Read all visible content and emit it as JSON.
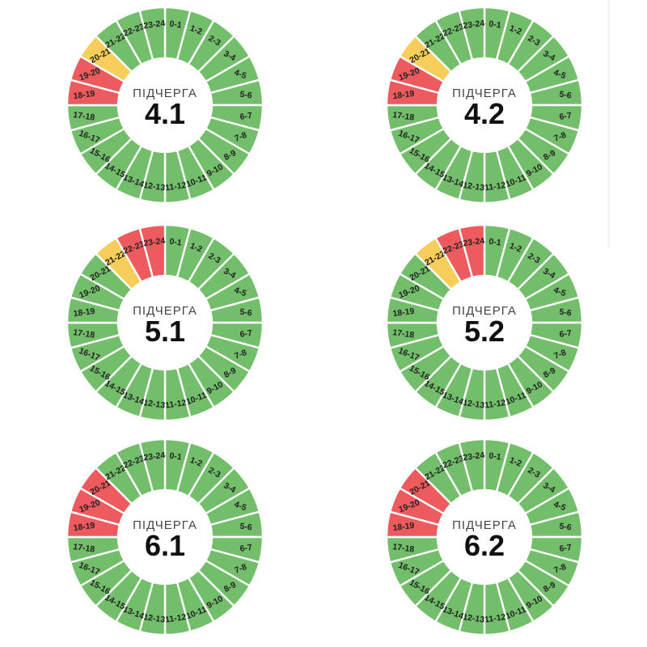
{
  "page": {
    "background": "#ffffff"
  },
  "colors": {
    "on": "#72BE6A",
    "warn": "#F7CE5C",
    "off": "#EE5B5E",
    "separator": "#ffffff",
    "hour_label_text": "#222222",
    "center_title_text": "#454545",
    "center_number_text": "#101010"
  },
  "chart_data": [
    {
      "type": "donut",
      "center": {
        "title": "ПІДЧЕРГА",
        "number": "4.1"
      },
      "categories": [
        "0-1",
        "1-2",
        "2-3",
        "3-4",
        "4-5",
        "5-6",
        "6-7",
        "7-8",
        "8-9",
        "9-10",
        "10-11",
        "11-12",
        "12-13",
        "13-14",
        "14-15",
        "15-16",
        "16-17",
        "17-18",
        "18-19",
        "19-20",
        "20-21",
        "21-22",
        "22-23",
        "23-24"
      ],
      "statuses": [
        "on",
        "on",
        "on",
        "on",
        "on",
        "on",
        "on",
        "on",
        "on",
        "on",
        "on",
        "on",
        "on",
        "on",
        "on",
        "on",
        "on",
        "on",
        "off",
        "off",
        "warn",
        "on",
        "on",
        "on"
      ]
    },
    {
      "type": "donut",
      "center": {
        "title": "ПІДЧЕРГА",
        "number": "4.2"
      },
      "categories": [
        "0-1",
        "1-2",
        "2-3",
        "3-4",
        "4-5",
        "5-6",
        "6-7",
        "7-8",
        "8-9",
        "9-10",
        "10-11",
        "11-12",
        "12-13",
        "13-14",
        "14-15",
        "15-16",
        "16-17",
        "17-18",
        "18-19",
        "19-20",
        "20-21",
        "21-22",
        "22-23",
        "23-24"
      ],
      "statuses": [
        "on",
        "on",
        "on",
        "on",
        "on",
        "on",
        "on",
        "on",
        "on",
        "on",
        "on",
        "on",
        "on",
        "on",
        "on",
        "on",
        "on",
        "on",
        "off",
        "off",
        "warn",
        "on",
        "on",
        "on"
      ]
    },
    {
      "type": "donut",
      "center": {
        "title": "ПІДЧЕРГА",
        "number": "5.1"
      },
      "categories": [
        "0-1",
        "1-2",
        "2-3",
        "3-4",
        "4-5",
        "5-6",
        "6-7",
        "7-8",
        "8-9",
        "9-10",
        "10-11",
        "11-12",
        "12-13",
        "13-14",
        "14-15",
        "15-16",
        "16-17",
        "17-18",
        "18-19",
        "19-20",
        "20-21",
        "21-22",
        "22-23",
        "23-24"
      ],
      "statuses": [
        "on",
        "on",
        "on",
        "on",
        "on",
        "on",
        "on",
        "on",
        "on",
        "on",
        "on",
        "on",
        "on",
        "on",
        "on",
        "on",
        "on",
        "on",
        "on",
        "on",
        "on",
        "warn",
        "off",
        "off"
      ]
    },
    {
      "type": "donut",
      "center": {
        "title": "ПІДЧЕРГА",
        "number": "5.2"
      },
      "categories": [
        "0-1",
        "1-2",
        "2-3",
        "3-4",
        "4-5",
        "5-6",
        "6-7",
        "7-8",
        "8-9",
        "9-10",
        "10-11",
        "11-12",
        "12-13",
        "13-14",
        "14-15",
        "15-16",
        "16-17",
        "17-18",
        "18-19",
        "19-20",
        "20-21",
        "21-22",
        "22-23",
        "23-24"
      ],
      "statuses": [
        "on",
        "on",
        "on",
        "on",
        "on",
        "on",
        "on",
        "on",
        "on",
        "on",
        "on",
        "on",
        "on",
        "on",
        "on",
        "on",
        "on",
        "on",
        "on",
        "on",
        "on",
        "warn",
        "off",
        "off"
      ]
    },
    {
      "type": "donut",
      "center": {
        "title": "ПІДЧЕРГА",
        "number": "6.1"
      },
      "categories": [
        "0-1",
        "1-2",
        "2-3",
        "3-4",
        "4-5",
        "5-6",
        "6-7",
        "7-8",
        "8-9",
        "9-10",
        "10-11",
        "11-12",
        "12-13",
        "13-14",
        "14-15",
        "15-16",
        "16-17",
        "17-18",
        "18-19",
        "19-20",
        "20-21",
        "21-22",
        "22-23",
        "23-24"
      ],
      "statuses": [
        "on",
        "on",
        "on",
        "on",
        "on",
        "on",
        "on",
        "on",
        "on",
        "on",
        "on",
        "on",
        "on",
        "on",
        "on",
        "on",
        "on",
        "on",
        "off",
        "off",
        "off",
        "on",
        "on",
        "on"
      ]
    },
    {
      "type": "donut",
      "center": {
        "title": "ПІДЧЕРГА",
        "number": "6.2"
      },
      "categories": [
        "0-1",
        "1-2",
        "2-3",
        "3-4",
        "4-5",
        "5-6",
        "6-7",
        "7-8",
        "8-9",
        "9-10",
        "10-11",
        "11-12",
        "12-13",
        "13-14",
        "14-15",
        "15-16",
        "16-17",
        "17-18",
        "18-19",
        "19-20",
        "20-21",
        "21-22",
        "22-23",
        "23-24"
      ],
      "statuses": [
        "on",
        "on",
        "on",
        "on",
        "on",
        "on",
        "on",
        "on",
        "on",
        "on",
        "on",
        "on",
        "on",
        "on",
        "on",
        "on",
        "on",
        "on",
        "off",
        "off",
        "off",
        "on",
        "on",
        "on"
      ]
    }
  ]
}
